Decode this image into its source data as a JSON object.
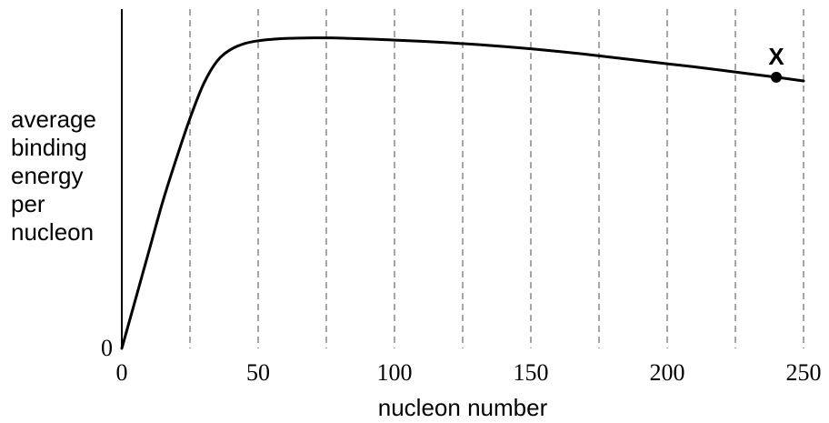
{
  "chart_data": {
    "type": "line",
    "title": "",
    "xlabel": "nucleon number",
    "ylabel_lines": [
      "average",
      "binding",
      "energy",
      "per",
      "nucleon"
    ],
    "xlim": [
      0,
      250
    ],
    "ylim": [
      0,
      1.18
    ],
    "x_ticks": [
      0,
      50,
      100,
      150,
      200,
      250
    ],
    "y_ticks": [
      0
    ],
    "y_tick_labels": [
      "0"
    ],
    "grid": "vertical dashed lines every 25",
    "gridlines_x": [
      25,
      50,
      75,
      100,
      125,
      150,
      175,
      200,
      225,
      250
    ],
    "series": [
      {
        "x": [
          0,
          5,
          10,
          15,
          20,
          25,
          30,
          35,
          40,
          45,
          50,
          55,
          60,
          65,
          70,
          75,
          80,
          90,
          100,
          110,
          120,
          130,
          140,
          150,
          160,
          170,
          180,
          190,
          200,
          210,
          220,
          230,
          240,
          250
        ],
        "values": [
          0,
          0.17,
          0.34,
          0.51,
          0.66,
          0.8,
          0.92,
          1.0,
          1.04,
          1.06,
          1.07,
          1.075,
          1.078,
          1.079,
          1.08,
          1.08,
          1.079,
          1.076,
          1.072,
          1.068,
          1.063,
          1.057,
          1.05,
          1.042,
          1.033,
          1.023,
          1.012,
          1.001,
          0.99,
          0.979,
          0.967,
          0.955,
          0.943,
          0.93
        ]
      }
    ],
    "annotations": [
      {
        "label": "X",
        "x": 240,
        "y": 0.943
      }
    ]
  }
}
